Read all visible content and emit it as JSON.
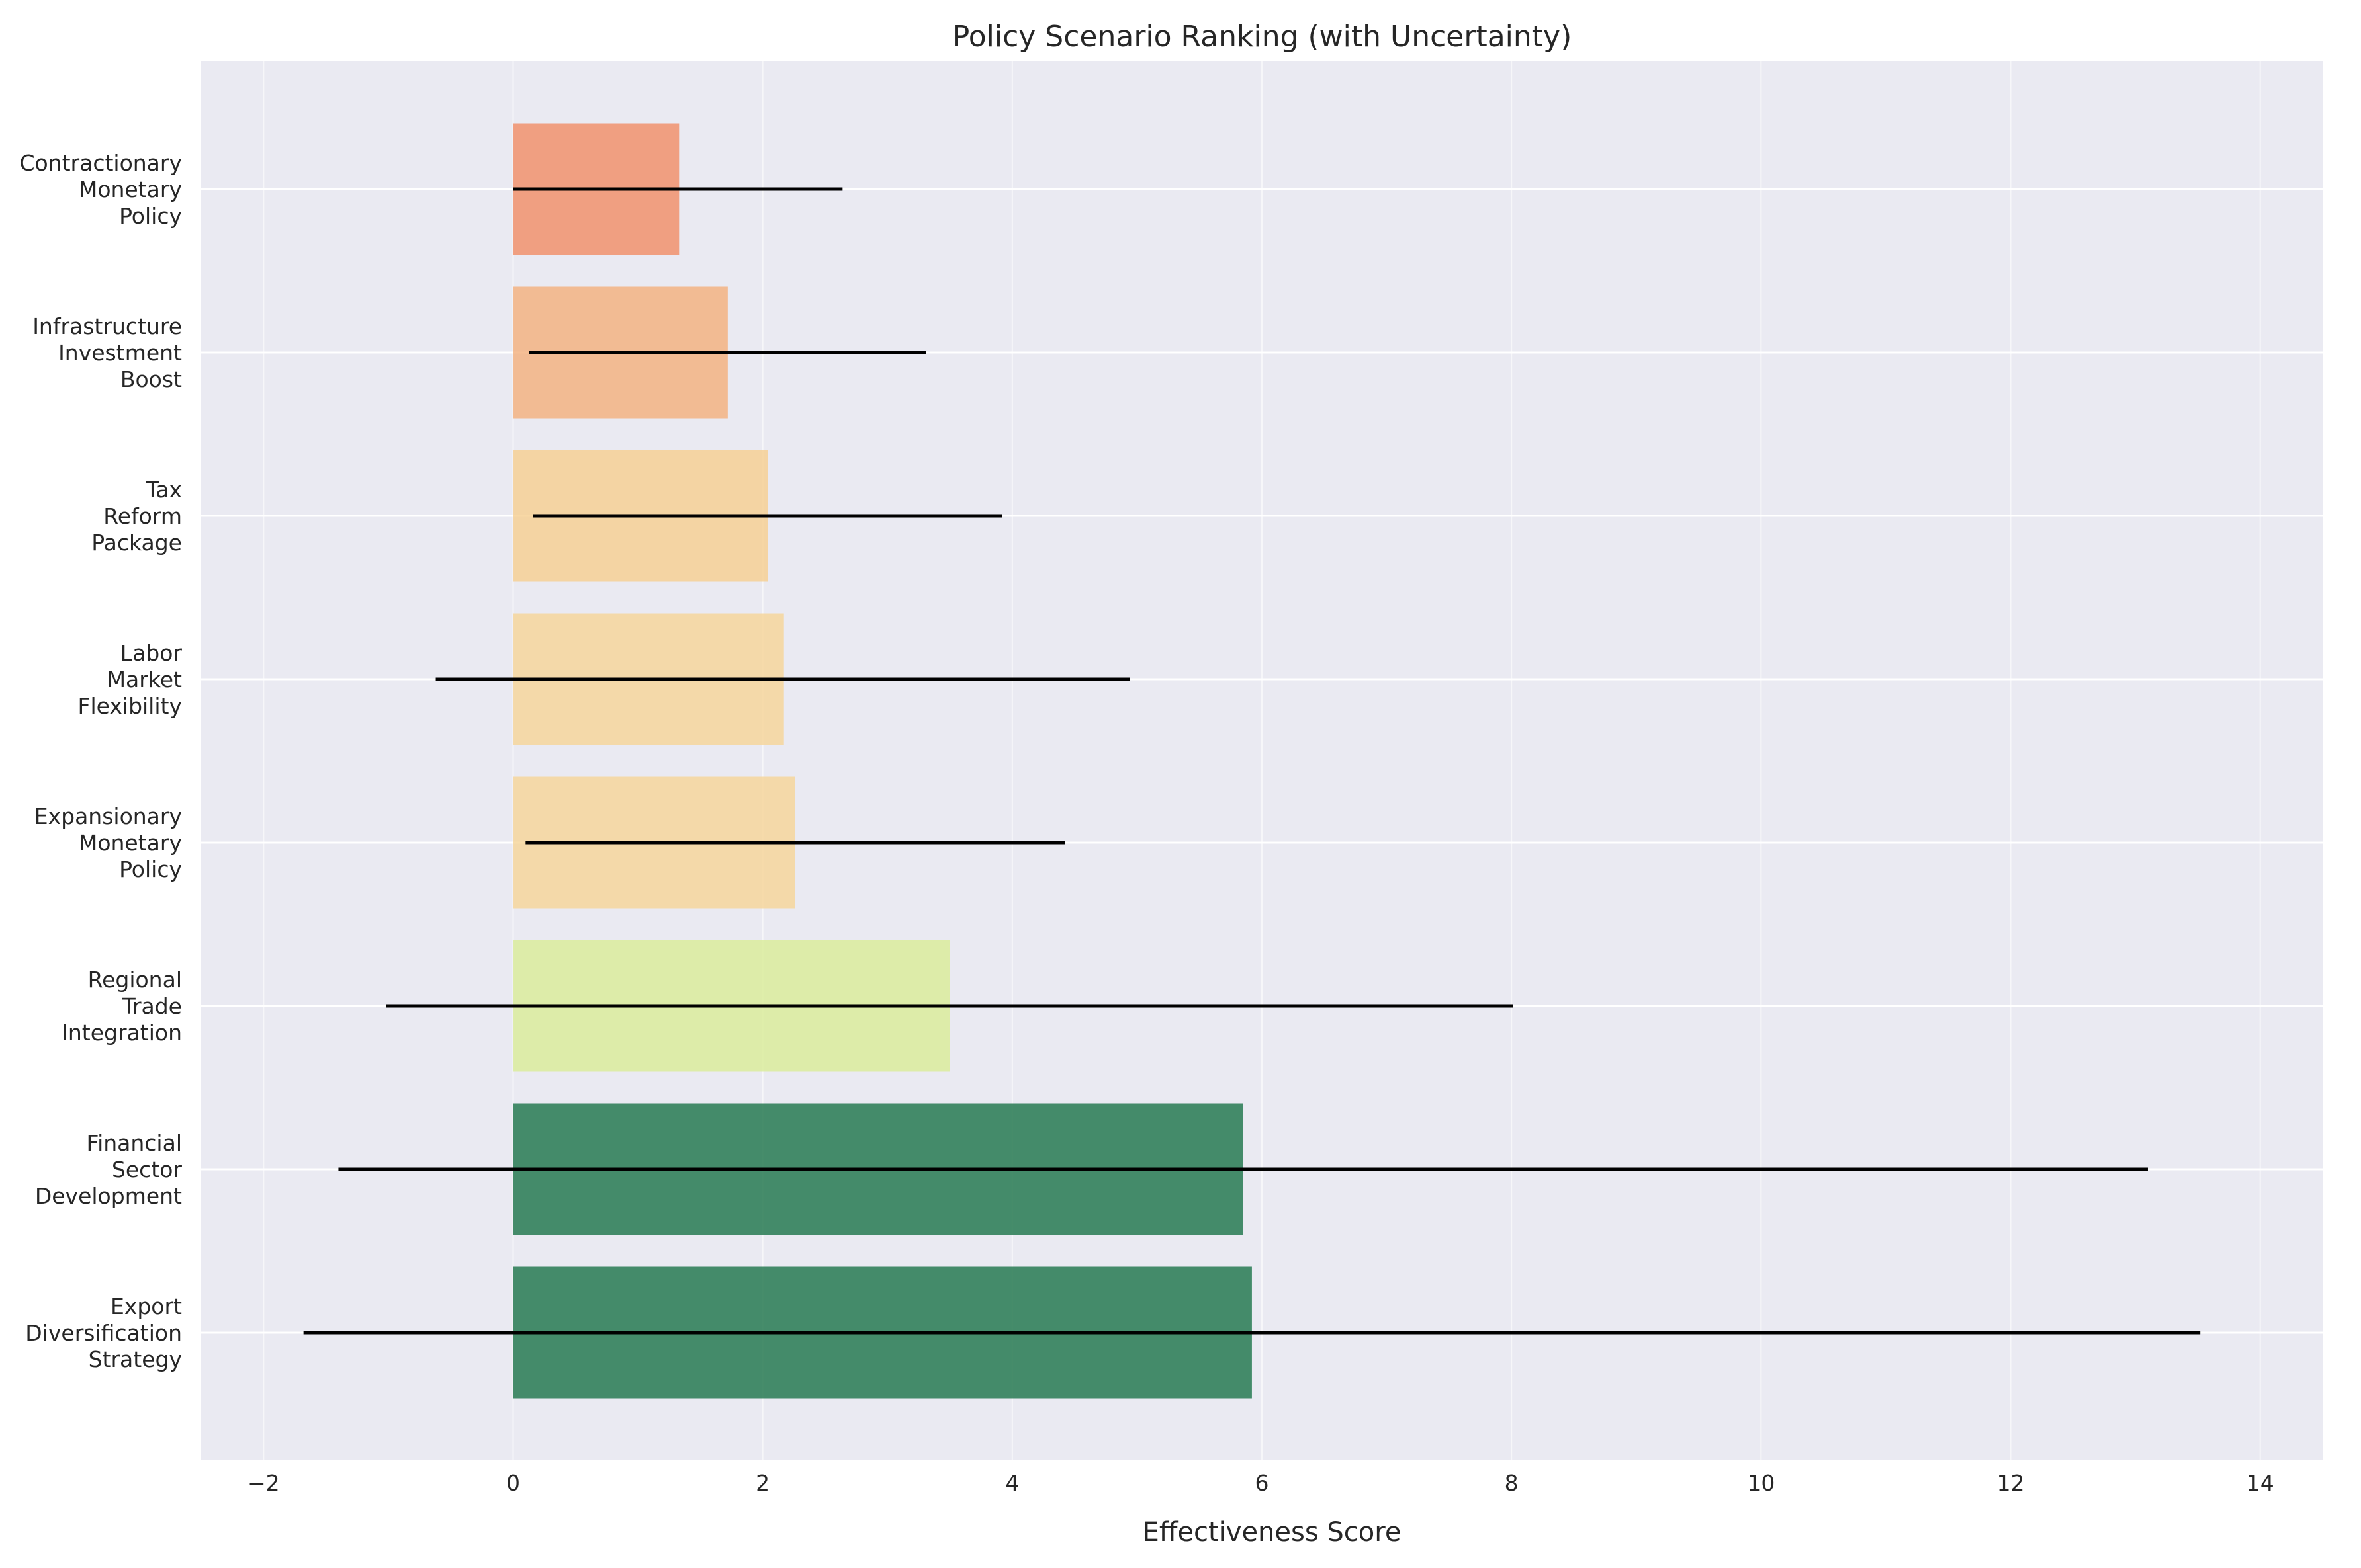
{
  "chart_data": {
    "type": "bar",
    "orientation": "horizontal",
    "title": "Policy Scenario Ranking (with Uncertainty)",
    "xlabel": "Effectiveness Score",
    "ylabel": "",
    "xlim": [
      -2.5,
      14.5
    ],
    "xticks": [
      -2,
      0,
      2,
      4,
      6,
      8,
      10,
      12,
      14
    ],
    "xtick_labels": [
      "−2",
      "0",
      "2",
      "4",
      "6",
      "8",
      "10",
      "12",
      "14"
    ],
    "grid": true,
    "categories": [
      [
        "Export",
        "Diversification",
        "Strategy"
      ],
      [
        "Financial",
        "Sector",
        "Development"
      ],
      [
        "Regional",
        "Trade",
        "Integration"
      ],
      [
        "Expansionary",
        "Monetary",
        "Policy"
      ],
      [
        "Labor",
        "Market",
        "Flexibility"
      ],
      [
        "Tax",
        "Reform",
        "Package"
      ],
      [
        "Infrastructure",
        "Investment",
        "Boost"
      ],
      [
        "Contractionary",
        "Monetary",
        "Policy"
      ]
    ],
    "values": [
      5.92,
      5.85,
      3.5,
      2.26,
      2.17,
      2.04,
      1.72,
      1.33
    ],
    "error_low": [
      -1.68,
      -1.4,
      -1.02,
      0.1,
      -0.62,
      0.16,
      0.13,
      0.0
    ],
    "error_high": [
      13.52,
      13.1,
      8.01,
      4.42,
      4.94,
      3.92,
      3.31,
      2.64
    ],
    "colors": [
      "#1a7347",
      "#1a7347",
      "#d9ec96",
      "#f6d596",
      "#f6d596",
      "#f6ce8e",
      "#f4af7a",
      "#f18c64"
    ]
  }
}
